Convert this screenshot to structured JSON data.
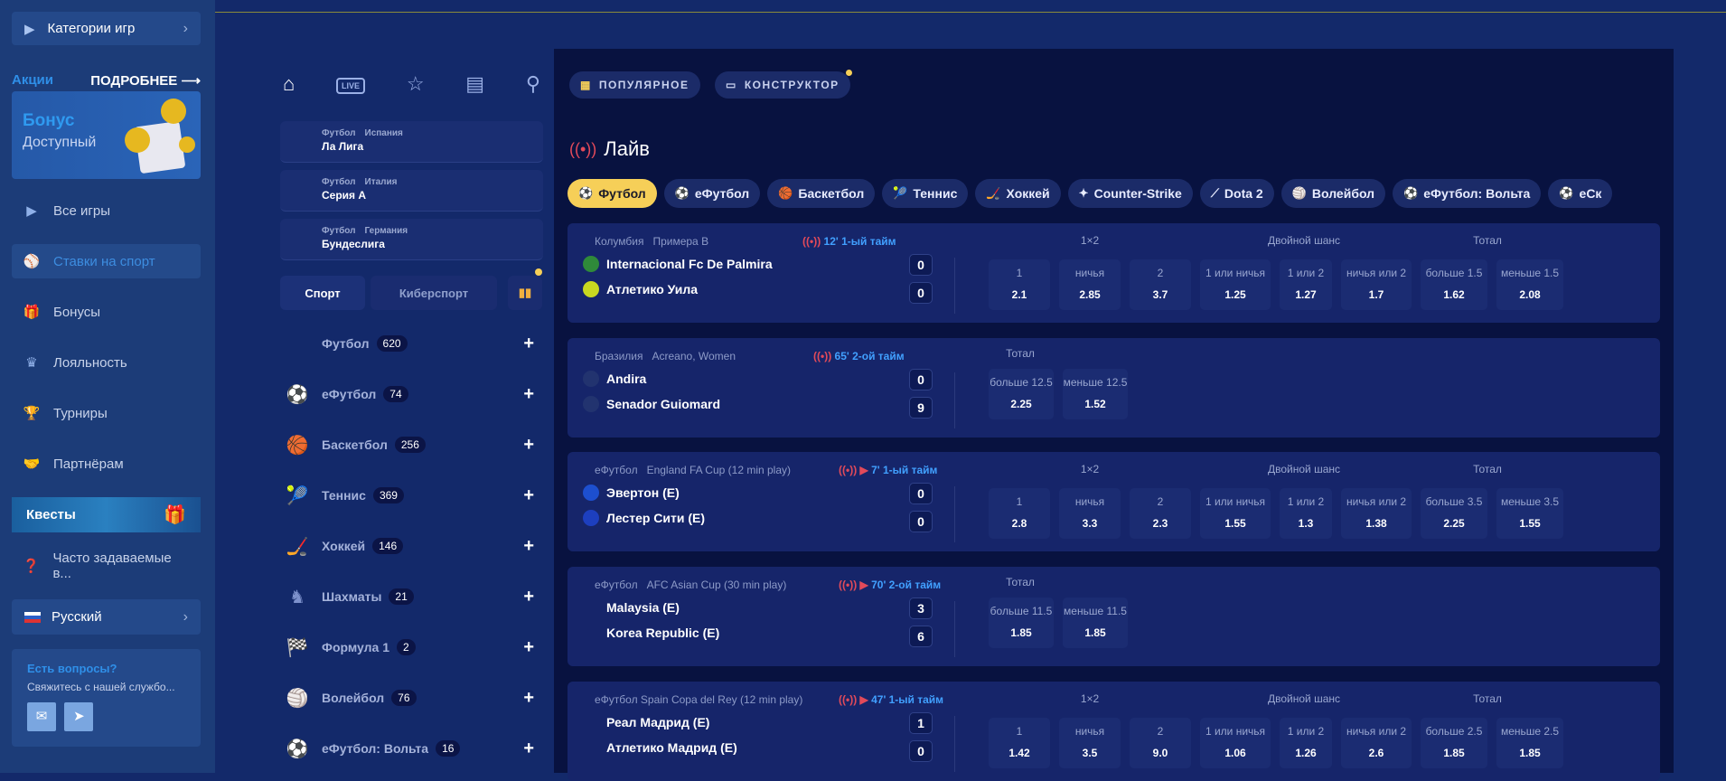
{
  "sidebar": {
    "categories": "Категории игр",
    "promo_title": "Акции",
    "promo_more": "ПОДРОБНЕЕ",
    "bonus_title": "Бонус",
    "bonus_sub": "Доступный",
    "items": [
      {
        "label": "Все игры",
        "icon": "play-icon",
        "glyph": "▶"
      },
      {
        "label": "Ставки на спорт",
        "icon": "ball-icon",
        "glyph": "⚾",
        "active": true
      },
      {
        "label": "Бонусы",
        "icon": "gift-icon",
        "glyph": "🎁"
      },
      {
        "label": "Лояльность",
        "icon": "crown-icon",
        "glyph": "♛"
      },
      {
        "label": "Турниры",
        "icon": "trophy-icon",
        "glyph": "🏆"
      },
      {
        "label": "Партнёрам",
        "icon": "handshake-icon",
        "glyph": "🤝"
      }
    ],
    "quests": "Квесты",
    "faq": "Часто задаваемые в...",
    "language": "Русский",
    "contact_title": "Есть вопросы?",
    "contact_sub": "Свяжитесь с нашей службо..."
  },
  "mid": {
    "nav_icons": [
      "home-icon",
      "live-icon",
      "star-icon",
      "betslip-icon",
      "search-icon"
    ],
    "live_badge": "LIVE",
    "leagues": [
      {
        "sport": "Футбол",
        "country": "Испания",
        "name": "Ла Лига"
      },
      {
        "sport": "Футбол",
        "country": "Италия",
        "name": "Серия А"
      },
      {
        "sport": "Футбол",
        "country": "Германия",
        "name": "Бундеслига"
      }
    ],
    "tabs": [
      "Спорт",
      "Киберспорт"
    ],
    "sports": [
      {
        "name": "Футбол",
        "count": "620"
      },
      {
        "name": "еФутбол",
        "count": "74"
      },
      {
        "name": "Баскетбол",
        "count": "256"
      },
      {
        "name": "Теннис",
        "count": "369"
      },
      {
        "name": "Хоккей",
        "count": "146"
      },
      {
        "name": "Шахматы",
        "count": "21"
      },
      {
        "name": "Формула 1",
        "count": "2"
      },
      {
        "name": "Волейбол",
        "count": "76"
      },
      {
        "name": "еФутбол: Вольта",
        "count": "16"
      }
    ]
  },
  "main": {
    "popular": "ПОПУЛЯРНОЕ",
    "constructor": "КОНСТРУКТОР",
    "live_title": "Лайв",
    "chips": [
      "Футбол",
      "еФутбол",
      "Баскетбол",
      "Теннис",
      "Хоккей",
      "Counter-Strike",
      "Dota 2",
      "Волейбол",
      "еФутбол: Вольта",
      "eСк"
    ],
    "groups": {
      "g1": "1×2",
      "g2": "Двойной шанс",
      "g3": "Тотал"
    },
    "matches": [
      {
        "meta": "Колумбия   Примера B",
        "time": "12' 1-ый тайм",
        "video": false,
        "teams": [
          "Internacional Fc De Palmira",
          "Атлетико Уила"
        ],
        "scores": [
          "0",
          "0"
        ],
        "full": true,
        "odds": [
          [
            "1",
            "2.1"
          ],
          [
            "ничья",
            "2.85"
          ],
          [
            "2",
            "3.7"
          ],
          [
            "1 или ничья",
            "1.25"
          ],
          [
            "1 или 2",
            "1.27"
          ],
          [
            "ничья или 2",
            "1.7"
          ],
          [
            "больше 1.5",
            "1.62"
          ],
          [
            "меньше 1.5",
            "2.08"
          ]
        ]
      },
      {
        "meta": "Бразилия   Acreano, Women",
        "time": "65' 2-ой тайм",
        "video": false,
        "teams": [
          "Andira",
          "Senador Guiomard"
        ],
        "scores": [
          "0",
          "9"
        ],
        "full": false,
        "odds": [
          [
            "больше 12.5",
            "2.25"
          ],
          [
            "меньше 12.5",
            "1.52"
          ]
        ]
      },
      {
        "meta": "еФутбол   England FA Cup (12 min play)",
        "time": "7' 1-ый тайм",
        "video": true,
        "teams": [
          "Эвертон (E)",
          "Лестер Сити (E)"
        ],
        "scores": [
          "0",
          "0"
        ],
        "full": true,
        "odds": [
          [
            "1",
            "2.8"
          ],
          [
            "ничья",
            "3.3"
          ],
          [
            "2",
            "2.3"
          ],
          [
            "1 или ничья",
            "1.55"
          ],
          [
            "1 или 2",
            "1.3"
          ],
          [
            "ничья или 2",
            "1.38"
          ],
          [
            "больше 3.5",
            "2.25"
          ],
          [
            "меньше 3.5",
            "1.55"
          ]
        ]
      },
      {
        "meta": "еФутбол   AFC Asian Cup (30 min play)",
        "time": "70' 2-ой тайм",
        "video": true,
        "teams": [
          "Malaysia (E)",
          "Korea Republic (E)"
        ],
        "scores": [
          "3",
          "6"
        ],
        "full": false,
        "odds": [
          [
            "больше 11.5",
            "1.85"
          ],
          [
            "меньше 11.5",
            "1.85"
          ]
        ]
      },
      {
        "meta": "еФутбол Spain Copa del Rey (12 min play)",
        "time": "47' 1-ый тайм",
        "video": true,
        "teams": [
          "Реал Мадрид (E)",
          "Атлетико Мадрид (E)"
        ],
        "scores": [
          "1",
          "0"
        ],
        "full": true,
        "odds": [
          [
            "1",
            "1.42"
          ],
          [
            "ничья",
            "3.5"
          ],
          [
            "2",
            "9.0"
          ],
          [
            "1 или ничья",
            "1.06"
          ],
          [
            "1 или 2",
            "1.26"
          ],
          [
            "ничья или 2",
            "2.6"
          ],
          [
            "больше 2.5",
            "1.85"
          ],
          [
            "меньше 2.5",
            "1.85"
          ]
        ]
      }
    ]
  },
  "colors": {
    "accent": "#f6cf58",
    "live": "#e24a5a",
    "link": "#41a0ff"
  }
}
